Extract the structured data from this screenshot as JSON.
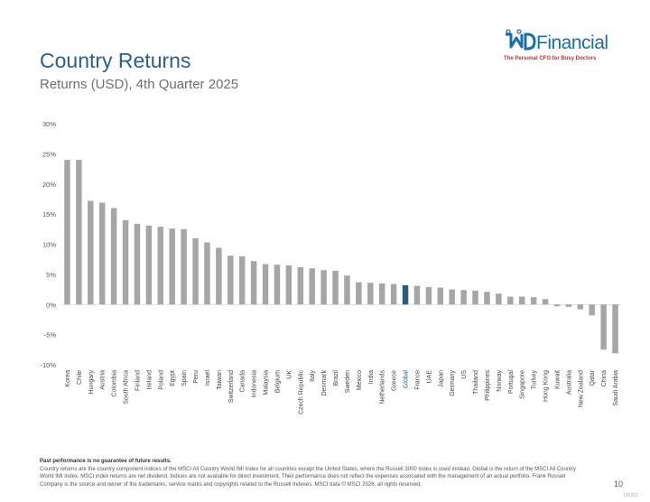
{
  "header": {
    "title": "Country Returns",
    "subtitle": "Returns (USD), 4th Quarter 2025"
  },
  "logo": {
    "wordmark": "Financial",
    "tagline": "The Personal CFO for Busy Doctors",
    "color": "#1a6fa6",
    "tagline_color": "#b0373c"
  },
  "footer": {
    "disclaimer_bold": "Past performance is no guarantee of future results.",
    "disclaimer": "Country returns are the country component indices of the MSCI All Country World IMI Index for all countries except the United States, where the Russell 3000 Index is used instead. Global is the return of the MSCI All Country World IMI Index. MSCI index returns are net dividend. Indices are not available for direct investment. Their performance does not reflect the expenses associated with the management of an actual portfolio. Frank Russell Company is the source and owner of the trademarks, service marks and copyrights related to the Russell Indexes. MSCI data © MSCI 2026, all rights reserved.",
    "page_number": "10",
    "doc_code": "135203"
  },
  "chart_data": {
    "type": "bar",
    "title": "",
    "xlabel": "",
    "ylabel": "",
    "ylim": [
      -10,
      30
    ],
    "yticks": [
      -10,
      -5,
      0,
      5,
      10,
      15,
      20,
      25,
      30
    ],
    "ytick_labels": [
      "-10%",
      "-5%",
      "0%",
      "5%",
      "10%",
      "15%",
      "20%",
      "25%",
      "30%"
    ],
    "grid": false,
    "bar_color": "#a6a6a6",
    "highlight_color": "#2f5a78",
    "highlight_category": "Global",
    "categories": [
      "Korea",
      "Chile",
      "Hungary",
      "Austria",
      "Colombia",
      "South Africa",
      "Finland",
      "Ireland",
      "Poland",
      "Egypt",
      "Spain",
      "Peru",
      "Israel",
      "Taiwan",
      "Switzerland",
      "Canada",
      "Indonesia",
      "Malaysia",
      "Belgium",
      "UK",
      "Czech Republic",
      "Italy",
      "Denmark",
      "Brazil",
      "Sweden",
      "Mexico",
      "India",
      "Netherlands",
      "Greece",
      "Global",
      "France",
      "UAE",
      "Japan",
      "Germany",
      "US",
      "Thailand",
      "Philippines",
      "Norway",
      "Portugal",
      "Singapore",
      "Turkey",
      "Hong Kong",
      "Kuwait",
      "Australia",
      "New Zealand",
      "Qatar",
      "China",
      "Saudi Arabia"
    ],
    "values": [
      24.0,
      24.0,
      17.2,
      16.9,
      16.0,
      14.0,
      13.4,
      13.1,
      12.9,
      12.6,
      12.5,
      11.0,
      10.3,
      9.4,
      8.1,
      8.0,
      7.2,
      6.7,
      6.6,
      6.5,
      6.2,
      6.0,
      5.7,
      5.6,
      4.8,
      3.7,
      3.6,
      3.5,
      3.4,
      3.2,
      3.1,
      2.9,
      2.8,
      2.5,
      2.4,
      2.3,
      2.1,
      1.8,
      1.3,
      1.3,
      1.2,
      0.9,
      -0.3,
      -0.4,
      -0.8,
      -1.8,
      -7.5,
      -8.1
    ]
  }
}
